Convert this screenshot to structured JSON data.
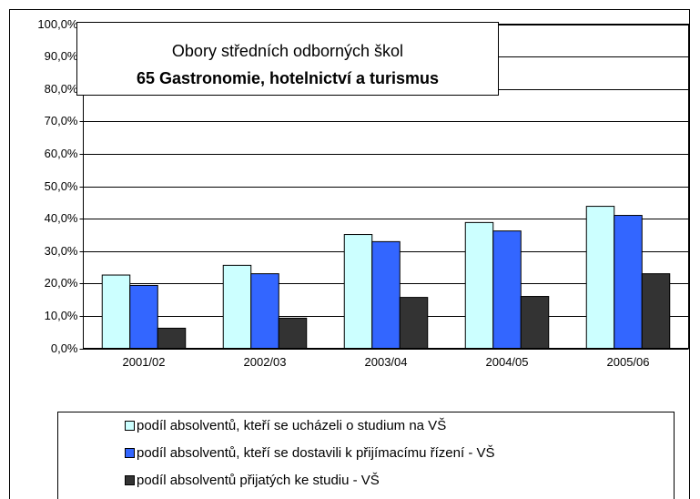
{
  "chart_data": {
    "type": "bar",
    "title": "Obory středních odborných škol",
    "subtitle": "65 Gastronomie, hotelnictví a turismus",
    "categories": [
      "2001/02",
      "2002/03",
      "2003/04",
      "2004/05",
      "2005/06"
    ],
    "series": [
      {
        "name": "podíl absolventů, kteří se ucházeli o studium na VŠ",
        "color": "#ccffff",
        "values": [
          22.6,
          25.6,
          35.1,
          38.8,
          43.8
        ]
      },
      {
        "name": "podíl absolventů, kteří se dostavili k přijímacímu řízení - VŠ",
        "color": "#3366ff",
        "values": [
          19.4,
          23.0,
          32.9,
          36.2,
          41.0
        ]
      },
      {
        "name": "podíl absolventů přijatých ke studiu - VŠ",
        "color": "#333333",
        "values": [
          6.2,
          9.3,
          15.7,
          16.0,
          23.0
        ]
      }
    ],
    "ylim": [
      0,
      100
    ],
    "yticks": [
      {
        "value": 0,
        "label": "0,0%"
      },
      {
        "value": 10,
        "label": "10,0%"
      },
      {
        "value": 20,
        "label": "20,0%"
      },
      {
        "value": 30,
        "label": "30,0%"
      },
      {
        "value": 40,
        "label": "40,0%"
      },
      {
        "value": 50,
        "label": "50,0%"
      },
      {
        "value": 60,
        "label": "60,0%"
      },
      {
        "value": 70,
        "label": "70,0%"
      },
      {
        "value": 80,
        "label": "80,0%"
      },
      {
        "value": 90,
        "label": "90,0%"
      },
      {
        "value": 100,
        "label": "100,0%"
      }
    ],
    "grid": true,
    "legend": "bottom"
  }
}
